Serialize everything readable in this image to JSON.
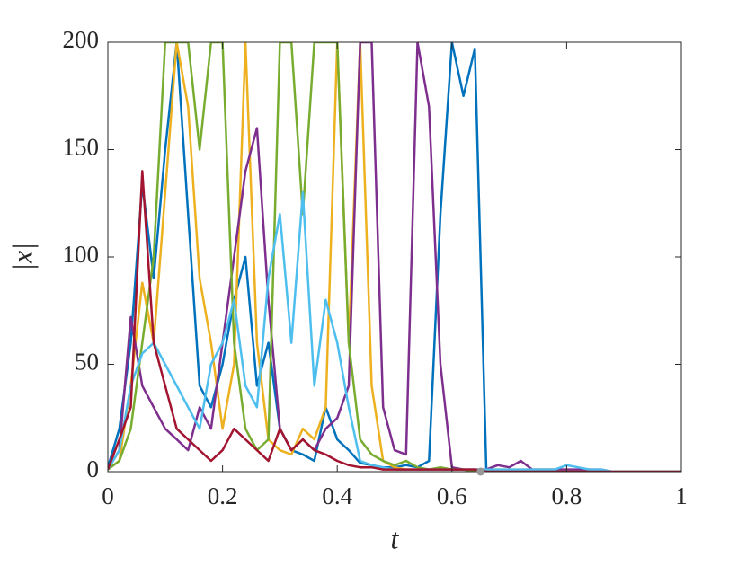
{
  "chart_data": {
    "type": "line",
    "xlabel": "t",
    "ylabel": "|x|",
    "xlim": [
      0,
      1
    ],
    "ylim": [
      0,
      200
    ],
    "xticks": [
      0,
      0.2,
      0.4,
      0.6,
      0.8,
      1
    ],
    "yticks": [
      0,
      50,
      100,
      150,
      200
    ],
    "x": [
      0,
      0.02,
      0.04,
      0.06,
      0.08,
      0.1,
      0.12,
      0.14,
      0.16,
      0.18,
      0.2,
      0.22,
      0.24,
      0.26,
      0.28,
      0.3,
      0.32,
      0.34,
      0.36,
      0.38,
      0.4,
      0.42,
      0.44,
      0.46,
      0.48,
      0.5,
      0.52,
      0.54,
      0.56,
      0.58,
      0.6,
      0.62,
      0.64,
      0.66,
      0.68,
      0.7,
      0.72,
      0.74,
      0.76,
      0.78,
      0.8,
      0.82,
      0.84,
      0.86,
      0.88,
      0.9,
      0.92,
      0.94,
      0.96,
      0.98,
      1
    ],
    "series": [
      {
        "color": "#0072BD",
        "values": [
          2,
          20,
          60,
          134,
          90,
          150,
          200,
          120,
          40,
          30,
          50,
          80,
          100,
          40,
          60,
          20,
          10,
          8,
          5,
          30,
          15,
          10,
          4,
          3,
          2,
          2,
          3,
          2,
          5,
          120,
          200,
          175,
          197,
          0,
          0,
          0,
          0,
          0,
          0,
          0,
          0,
          1,
          1,
          0,
          0,
          0,
          0,
          0,
          0,
          0,
          0
        ]
      },
      {
        "color": "#EDB120",
        "values": [
          1,
          5,
          40,
          88,
          60,
          130,
          200,
          170,
          90,
          60,
          20,
          50,
          200,
          60,
          15,
          10,
          8,
          20,
          15,
          30,
          200,
          60,
          200,
          40,
          5,
          2,
          1,
          1,
          1,
          1,
          1,
          1,
          1,
          1,
          1,
          1,
          1,
          1,
          1,
          1,
          1,
          0,
          0,
          0,
          0,
          0,
          0,
          0,
          0,
          0,
          0
        ]
      },
      {
        "color": "#7E2F8E",
        "values": [
          1,
          10,
          72,
          40,
          30,
          20,
          15,
          10,
          30,
          20,
          60,
          100,
          140,
          160,
          80,
          20,
          10,
          15,
          10,
          20,
          25,
          40,
          200,
          200,
          30,
          10,
          8,
          200,
          170,
          50,
          2,
          1,
          1,
          1,
          3,
          2,
          5,
          1,
          1,
          1,
          1,
          1,
          1,
          1,
          0,
          0,
          0,
          0,
          0,
          0,
          0
        ]
      },
      {
        "color": "#77AC30",
        "values": [
          1,
          5,
          20,
          60,
          100,
          200,
          200,
          200,
          150,
          200,
          200,
          60,
          20,
          10,
          15,
          200,
          200,
          120,
          200,
          200,
          200,
          60,
          15,
          8,
          5,
          3,
          5,
          2,
          1,
          2,
          1,
          1,
          0,
          0,
          0,
          0,
          0,
          0,
          0,
          0,
          0,
          0,
          0,
          0,
          0,
          0,
          0,
          0,
          0,
          0,
          0
        ]
      },
      {
        "color": "#4DBEEE",
        "values": [
          1,
          10,
          40,
          55,
          60,
          50,
          40,
          30,
          20,
          50,
          60,
          80,
          40,
          30,
          90,
          120,
          60,
          130,
          40,
          80,
          60,
          30,
          5,
          3,
          2,
          1,
          1,
          1,
          1,
          1,
          1,
          1,
          1,
          1,
          1,
          1,
          1,
          1,
          1,
          1,
          3,
          2,
          1,
          1,
          0,
          0,
          0,
          0,
          0,
          0,
          0
        ]
      },
      {
        "color": "#A2142F",
        "values": [
          1,
          15,
          30,
          140,
          60,
          40,
          20,
          15,
          10,
          5,
          10,
          20,
          15,
          10,
          5,
          20,
          10,
          15,
          10,
          8,
          5,
          3,
          2,
          2,
          1,
          1,
          1,
          1,
          1,
          1,
          1,
          1,
          1,
          0,
          0,
          0,
          0,
          0,
          0,
          0,
          0,
          0,
          0,
          0,
          0,
          0,
          0,
          0,
          0,
          0,
          0
        ]
      }
    ],
    "marker": {
      "x": 0.65,
      "y": 0,
      "color": "#999999"
    }
  }
}
